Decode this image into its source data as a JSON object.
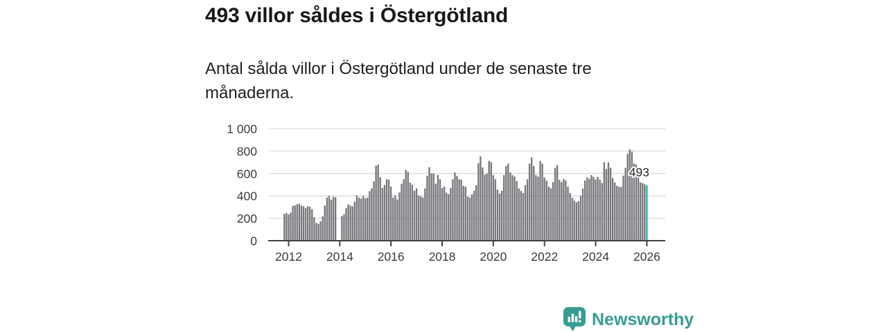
{
  "title": "493 villor såldes i Östergötland",
  "subtitle": "Antal sålda villor i Östergötland under de senaste tre månaderna.",
  "branding": {
    "name": "Newsworthy",
    "color": "#379c92"
  },
  "chart_data": {
    "type": "bar",
    "title": "493 villor såldes i Östergötland",
    "subtitle": "Antal sålda villor i Östergötland under de senaste tre månaderna.",
    "x_start": "2011-11",
    "x_end": "2026-01",
    "x_frequency": "monthly",
    "x_tick_labels": [
      "2012",
      "2014",
      "2016",
      "2018",
      "2020",
      "2022",
      "2024",
      "2026"
    ],
    "y_ticks": [
      0,
      200,
      400,
      600,
      800,
      1000
    ],
    "y_tick_labels": [
      "0",
      "200",
      "400",
      "600",
      "800",
      "1 000"
    ],
    "ylim": [
      0,
      1000
    ],
    "grid": true,
    "bar_color": "#75757a",
    "highlight_color": "#19b2a6",
    "axis_color": "#404040",
    "grid_color": "#d9d9d9",
    "annotation": {
      "label": "493",
      "value": 493
    },
    "values": [
      240,
      248,
      234,
      251,
      311,
      315,
      325,
      330,
      313,
      307,
      292,
      308,
      303,
      280,
      210,
      158,
      150,
      173,
      218,
      313,
      385,
      400,
      366,
      393,
      387,
      null,
      null,
      220,
      235,
      292,
      323,
      313,
      307,
      348,
      405,
      385,
      375,
      400,
      379,
      385,
      442,
      467,
      529,
      669,
      679,
      566,
      471,
      498,
      549,
      545,
      483,
      385,
      405,
      368,
      430,
      508,
      549,
      631,
      615,
      518,
      498,
      446,
      467,
      405,
      395,
      385,
      467,
      580,
      656,
      600,
      600,
      508,
      586,
      549,
      470,
      482,
      429,
      414,
      470,
      548,
      609,
      578,
      548,
      544,
      490,
      482,
      394,
      384,
      414,
      445,
      496,
      691,
      753,
      654,
      588,
      599,
      712,
      701,
      585,
      548,
      456,
      421,
      445,
      585,
      667,
      688,
      609,
      585,
      572,
      531,
      466,
      445,
      425,
      496,
      548,
      688,
      743,
      667,
      585,
      572,
      712,
      688,
      564,
      537,
      482,
      466,
      523,
      650,
      674,
      544,
      523,
      552,
      537,
      482,
      425,
      384,
      359,
      343,
      353,
      400,
      466,
      537,
      564,
      552,
      585,
      570,
      545,
      570,
      545,
      515,
      700,
      640,
      700,
      650,
      560,
      520,
      490,
      480,
      480,
      580,
      650,
      775,
      815,
      795,
      690,
      680,
      635,
      520,
      515,
      505,
      493
    ],
    "highlight_index": 170
  }
}
